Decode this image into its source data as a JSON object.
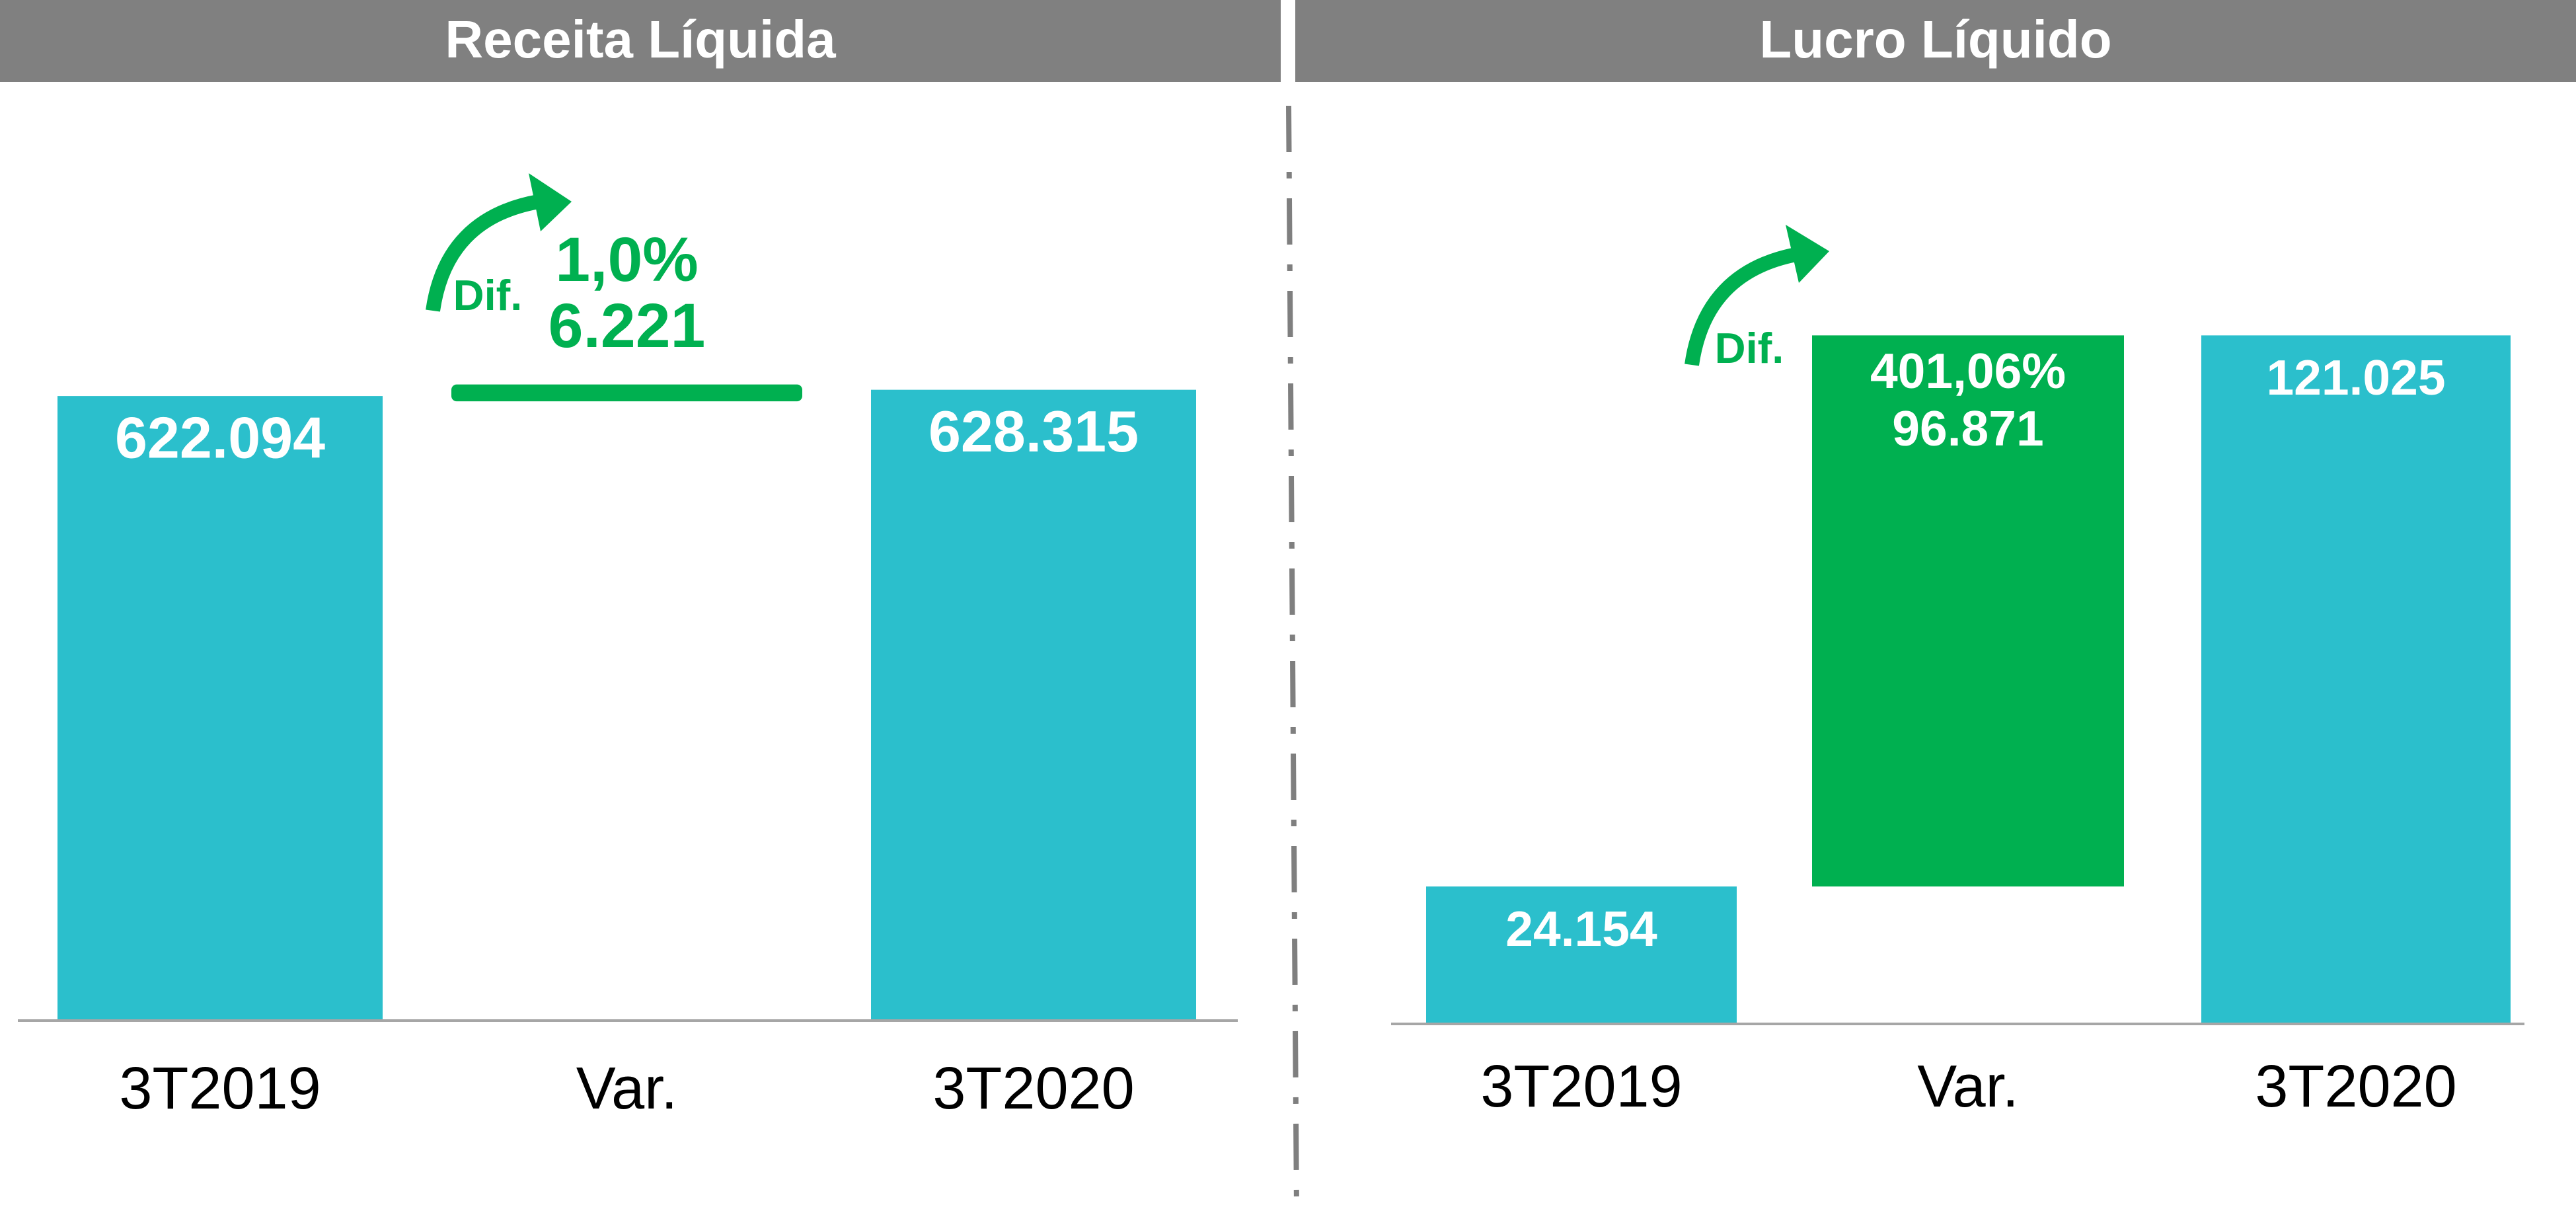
{
  "chart_data": [
    {
      "type": "waterfall",
      "title": "Receita Líquida",
      "categories": [
        "3T2019",
        "Var.",
        "3T2020"
      ],
      "values": [
        622094,
        6221,
        628315
      ],
      "value_labels": [
        "622.094",
        "6.221",
        "628.315"
      ],
      "colors": [
        "#2bbfcc",
        "#00b050",
        "#2bbfcc"
      ],
      "ylim": [
        0,
        900000
      ],
      "change": {
        "label": "Dif.",
        "value": 1.0,
        "value_label": "1,0%"
      }
    },
    {
      "type": "waterfall",
      "title": "Lucro Líquido",
      "categories": [
        "3T2019",
        "Var.",
        "3T2020"
      ],
      "values": [
        24154,
        96871,
        121025
      ],
      "value_labels": [
        "24.154",
        "96.871",
        "121.025"
      ],
      "colors": [
        "#2bbfcc",
        "#00b050",
        "#2bbfcc"
      ],
      "ylim": [
        0,
        150000
      ],
      "change": {
        "label": "Dif.",
        "value": 401.06,
        "value_label": "401,06%"
      }
    }
  ]
}
